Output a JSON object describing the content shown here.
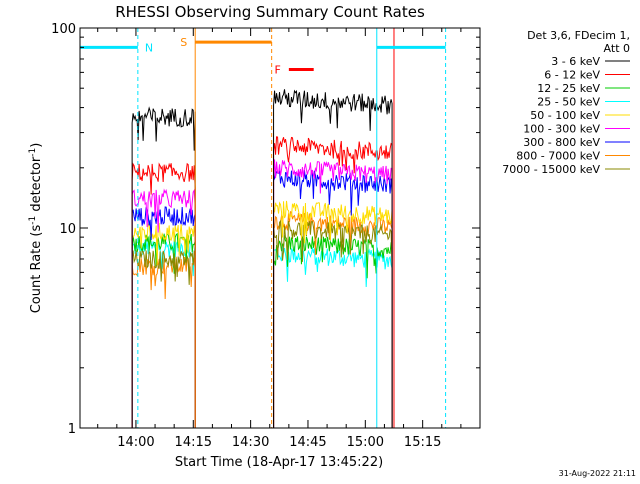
{
  "chart_data": {
    "type": "line",
    "title": "RHESSI Observing Summary Count Rates",
    "xlabel": "Start Time (18-Apr-17 13:45:22)",
    "ylabel": "Count Rate (s",
    "ylabel_sup": "-1",
    "ylabel_tail": " detector",
    "ylabel_sup2": "-1",
    "ylabel_end": ")",
    "yscale": "log",
    "xlim": [
      "13:45:22",
      "15:30:00"
    ],
    "ylim": [
      1,
      100
    ],
    "x_ticks": [
      "14:00",
      "14:15",
      "14:30",
      "14:45",
      "15:00",
      "15:15"
    ],
    "y_ticks": [
      "1",
      "10",
      "100"
    ],
    "grid": false,
    "legend_title_line1": "Det 3,6, FDecim 1,",
    "legend_title_line2": "Att 0",
    "legend_position": "right",
    "series": [
      {
        "name": "3 - 6 keV",
        "color": "#000000",
        "level_gap1": 36,
        "level_gap2": 45
      },
      {
        "name": "6 - 12 keV",
        "color": "#ff0000",
        "level_gap1": 19,
        "level_gap2": 26
      },
      {
        "name": "12 - 25 keV",
        "color": "#00cc00",
        "level_gap1": 8.5,
        "level_gap2": 8.5
      },
      {
        "name": "25 - 50 keV",
        "color": "#00ffff",
        "level_gap1": 8.0,
        "level_gap2": 7.5
      },
      {
        "name": "50 - 100 keV",
        "color": "#ffdd00",
        "level_gap1": 9.5,
        "level_gap2": 12.5
      },
      {
        "name": "100 - 300 keV",
        "color": "#ff00ff",
        "level_gap1": 14,
        "level_gap2": 20
      },
      {
        "name": "300 - 800 keV",
        "color": "#0000ff",
        "level_gap1": 11.5,
        "level_gap2": 18
      },
      {
        "name": "800 - 7000 keV",
        "color": "#ff8800",
        "level_gap1": 6.5,
        "level_gap2": 11
      },
      {
        "name": "7000 - 15000 keV",
        "color": "#888800",
        "level_gap1": 7.0,
        "level_gap2": 10
      }
    ],
    "data_intervals": [
      {
        "start": "13:59:00",
        "end": "14:15:30"
      },
      {
        "start": "14:36:00",
        "end": "15:07:00"
      }
    ],
    "flags": [
      {
        "label": "N",
        "color": "#00e5ff",
        "segments": [
          [
            "13:45:22",
            "14:00:30"
          ],
          [
            "15:03:00",
            "15:21:00"
          ]
        ],
        "value": 80
      },
      {
        "label": "S",
        "color": "#ff8800",
        "segments": [
          [
            "14:15:30",
            "14:35:30"
          ]
        ],
        "value": 85
      },
      {
        "label": "F",
        "color": "#ff0000",
        "segments": [
          [
            "14:40:00",
            "14:46:30"
          ]
        ],
        "value": 62
      }
    ],
    "markers": [
      {
        "time": "13:45:22",
        "color": "#00e5ff",
        "style": "solid"
      },
      {
        "time": "14:00:30",
        "color": "#00e5ff",
        "style": "dashed"
      },
      {
        "time": "14:15:30",
        "color": "#ff8800",
        "style": "solid"
      },
      {
        "time": "14:35:30",
        "color": "#ff8800",
        "style": "dashed"
      },
      {
        "time": "15:03:00",
        "color": "#00e5ff",
        "style": "solid"
      },
      {
        "time": "15:07:30",
        "color": "#ff0000",
        "style": "solid"
      },
      {
        "time": "15:21:00",
        "color": "#00e5ff",
        "style": "dashed"
      }
    ]
  },
  "footer_timestamp": "31-Aug-2022 21:11"
}
